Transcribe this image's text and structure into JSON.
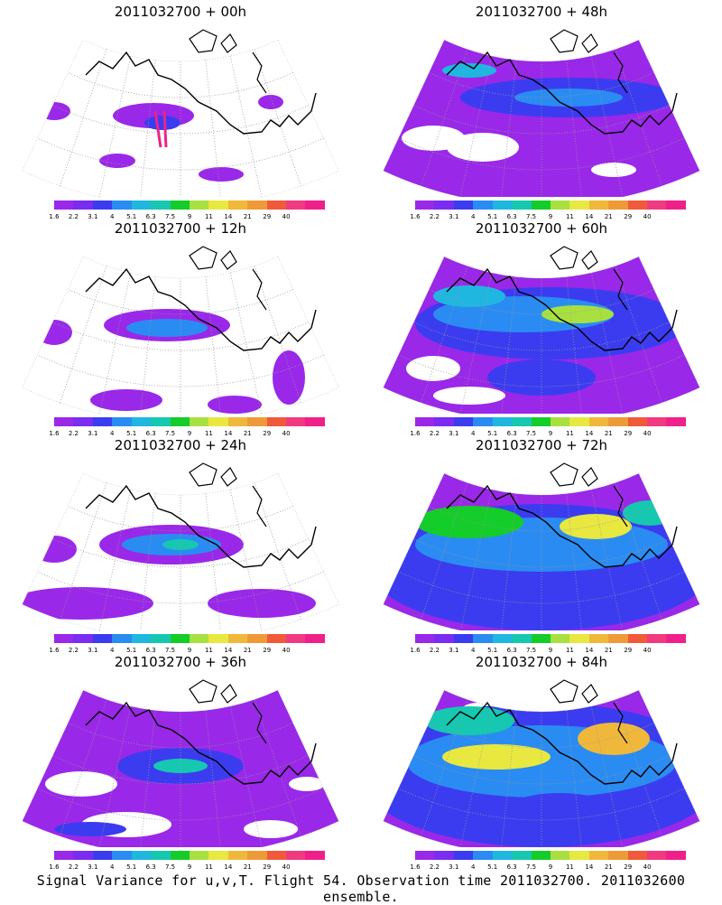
{
  "panels": [
    {
      "title": "2011032700 + 00h",
      "hour": 0
    },
    {
      "title": "2011032700 + 48h",
      "hour": 48
    },
    {
      "title": "2011032700 + 12h",
      "hour": 12
    },
    {
      "title": "2011032700 + 60h",
      "hour": 60
    },
    {
      "title": "2011032700 + 24h",
      "hour": 24
    },
    {
      "title": "2011032700 + 72h",
      "hour": 72
    },
    {
      "title": "2011032700 + 36h",
      "hour": 36
    },
    {
      "title": "2011032700 + 84h",
      "hour": 84
    }
  ],
  "colorbar": {
    "labels": [
      "1.6",
      "2.2",
      "3.1",
      "4",
      "5.1",
      "6.3",
      "7.5",
      "9",
      "11",
      "14",
      "21",
      "29",
      "40"
    ],
    "colors": [
      "#9a28e8",
      "#7a2cf0",
      "#3b3cf0",
      "#2a8cf2",
      "#1fb7e0",
      "#16c8b0",
      "#14cc2a",
      "#a8e040",
      "#e8e840",
      "#f0b83a",
      "#ee9a38",
      "#f05a3a",
      "#f03a80",
      "#f0208a"
    ]
  },
  "caption": "Signal Variance for u,v,T. Flight 54. Observation time 2011032700. 2011032600 ensemble.",
  "colors": {
    "background": "#ffffff",
    "coast": "#000000",
    "grid": "#999999"
  }
}
